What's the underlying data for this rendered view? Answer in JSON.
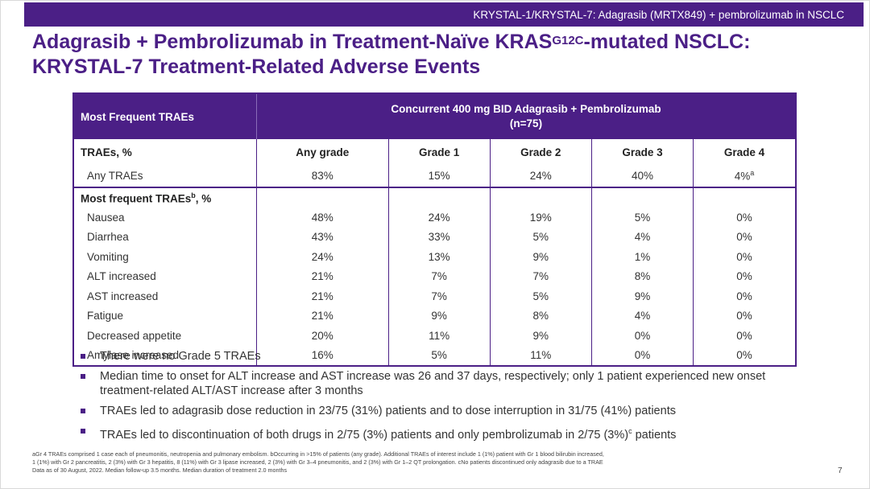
{
  "header": {
    "banner": "KRYSTAL-1/KRYSTAL-7: Adagrasib (MRTX849) + pembrolizumab in NSCLC"
  },
  "title": {
    "line1_before_sup": "Adagrasib + Pembrolizumab in Treatment-Naïve KRAS",
    "line1_sup": "G12C",
    "line1_after_sup": "-mutated NSCLC:",
    "line2": "KRYSTAL-7 Treatment-Related Adverse Events"
  },
  "table": {
    "header_first": "Most Frequent TRAEs",
    "header_span_line1": "Concurrent 400 mg BID Adagrasib + Pembrolizumab",
    "header_span_line2": "(n=75)",
    "columns": [
      "TRAEs, %",
      "Any grade",
      "Grade 1",
      "Grade 2",
      "Grade 3",
      "Grade 4"
    ],
    "any_row": {
      "label": "Any TRAEs",
      "values": [
        "83%",
        "15%",
        "24%",
        "40%"
      ],
      "grade4": "4%",
      "grade4_sup": "a"
    },
    "section_label": "Most frequent TRAEs",
    "section_sup": "b",
    "section_suffix": ", %",
    "rows": [
      {
        "label": "Nausea",
        "values": [
          "48%",
          "24%",
          "19%",
          "5%",
          "0%"
        ]
      },
      {
        "label": "Diarrhea",
        "values": [
          "43%",
          "33%",
          "5%",
          "4%",
          "0%"
        ]
      },
      {
        "label": "Vomiting",
        "values": [
          "24%",
          "13%",
          "9%",
          "1%",
          "0%"
        ]
      },
      {
        "label": "ALT increased",
        "values": [
          "21%",
          "7%",
          "7%",
          "8%",
          "0%"
        ]
      },
      {
        "label": "AST increased",
        "values": [
          "21%",
          "7%",
          "5%",
          "9%",
          "0%"
        ]
      },
      {
        "label": "Fatigue",
        "values": [
          "21%",
          "9%",
          "8%",
          "4%",
          "0%"
        ]
      },
      {
        "label": "Decreased appetite",
        "values": [
          "20%",
          "11%",
          "9%",
          "0%",
          "0%"
        ]
      },
      {
        "label": "Amylase increased",
        "values": [
          "16%",
          "5%",
          "11%",
          "0%",
          "0%"
        ]
      }
    ]
  },
  "bullets": [
    "There were no Grade 5 TRAEs",
    "Median time to onset for ALT increase and AST increase was 26 and 37 days, respectively; only 1 patient experienced new onset treatment-related ALT/AST increase after 3 months",
    "TRAEs led to adagrasib dose reduction in 23/75 (31%) patients and to dose interruption in 31/75 (41%) patients"
  ],
  "bullet_last": {
    "before": "TRAEs led to discontinuation of both drugs in 2/75 (3%) patients and only pembrolizumab in 2/75 (3%)",
    "sup": "c",
    "after": " patients"
  },
  "footnotes": {
    "line1": "aGr 4 TRAEs comprised 1 case each of pneumonitis, neutropenia and pulmonary embolism. bOccurring in >15% of patients (any grade). Additional TRAEs of interest include 1 (1%) patient with Gr 1 blood bilirubin increased,",
    "line2": "1 (1%) with Gr 2 pancreatitis, 2 (3%) with Gr 3 hepatitis, 8 (11%) with Gr 3 lipase increased, 2 (3%) with Gr 3–4 pneumonitis, and 2 (3%) with Gr 1–2 QT prolongation. cNo patients discontinued only adagrasib due to a TRAE",
    "line3": "Data as of 30 August, 2022. Median follow-up 3.5 months. Median duration of treatment 2.0 months"
  },
  "page_number": "7"
}
